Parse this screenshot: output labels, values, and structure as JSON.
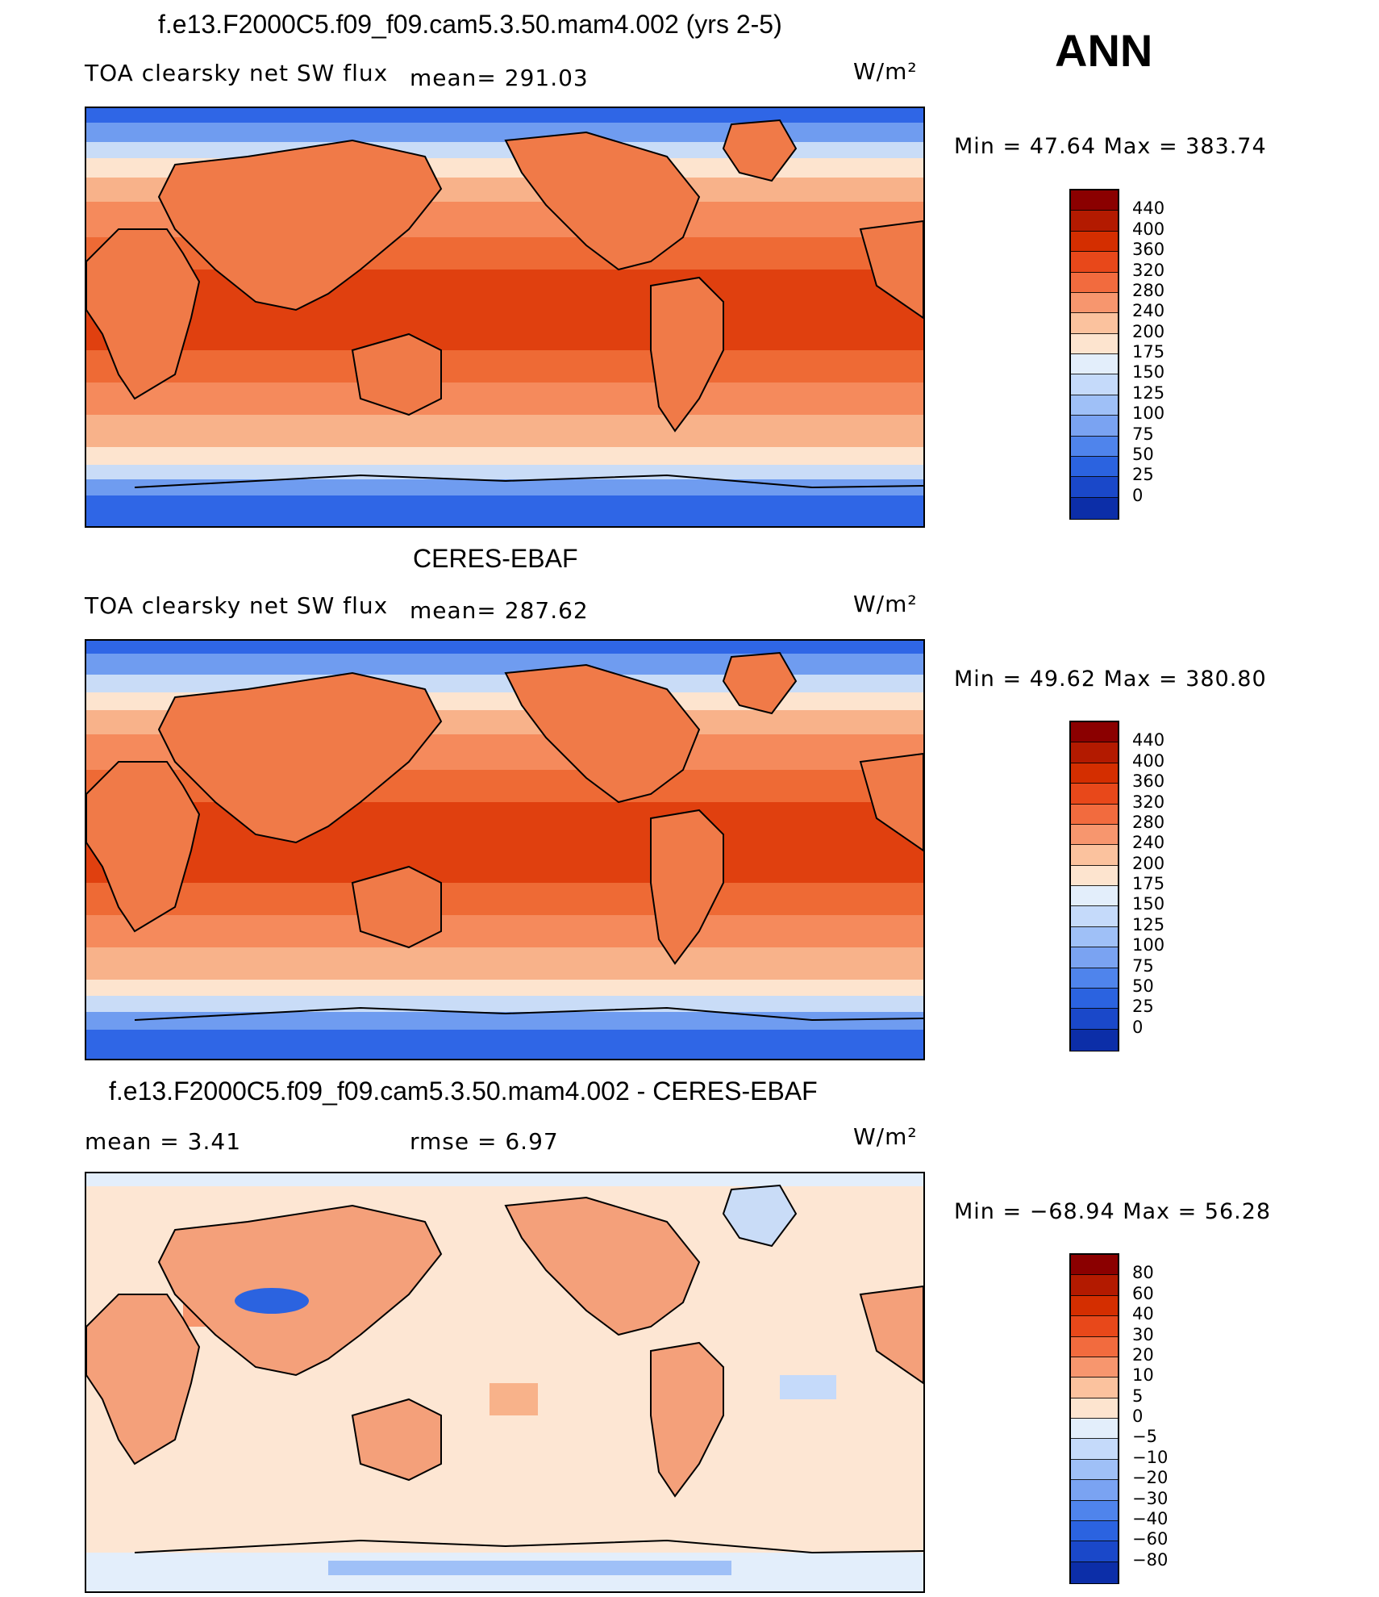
{
  "season": "ANN",
  "panels": [
    {
      "title": "f.e13.F2000C5.f09_f09.cam5.3.50.mam4.002 (yrs 2-5)",
      "left_label": "TOA clearsky net SW flux",
      "stat1": "mean= 291.03",
      "stat2": "",
      "units": "W/m²",
      "minmax": "Min =   47.64 Max = 383.74",
      "legend_labels": [
        "440",
        "400",
        "360",
        "320",
        "280",
        "240",
        "200",
        "175",
        "150",
        "125",
        "100",
        "75",
        "50",
        "25",
        "0"
      ],
      "legend_colors": [
        "#8b0000",
        "#b31a00",
        "#d42e00",
        "#e8481a",
        "#f26b3e",
        "#f7966e",
        "#fbc29e",
        "#fde4cf",
        "#e3eefb",
        "#c5dafa",
        "#9fc0f7",
        "#7aa3f2",
        "#4f84ec",
        "#2b63e0",
        "#1a48c9",
        "#0c2ea8"
      ]
    },
    {
      "title": "CERES-EBAF",
      "left_label": "TOA clearsky net SW flux",
      "stat1": "mean= 287.62",
      "stat2": "",
      "units": "W/m²",
      "minmax": "Min =   49.62 Max = 380.80",
      "legend_labels": [
        "440",
        "400",
        "360",
        "320",
        "280",
        "240",
        "200",
        "175",
        "150",
        "125",
        "100",
        "75",
        "50",
        "25",
        "0"
      ],
      "legend_colors": [
        "#8b0000",
        "#b31a00",
        "#d42e00",
        "#e8481a",
        "#f26b3e",
        "#f7966e",
        "#fbc29e",
        "#fde4cf",
        "#e3eefb",
        "#c5dafa",
        "#9fc0f7",
        "#7aa3f2",
        "#4f84ec",
        "#2b63e0",
        "#1a48c9",
        "#0c2ea8"
      ]
    },
    {
      "title": "f.e13.F2000C5.f09_f09.cam5.3.50.mam4.002 - CERES-EBAF",
      "left_label": "mean =    3.41",
      "stat1": "rmse =    6.97",
      "stat2": "",
      "units": "W/m²",
      "minmax": "Min = −68.94 Max =  56.28",
      "legend_labels": [
        "80",
        "60",
        "40",
        "30",
        "20",
        "10",
        "5",
        "0",
        "−5",
        "−10",
        "−20",
        "−30",
        "−40",
        "−60",
        "−80"
      ],
      "legend_colors": [
        "#8b0000",
        "#b31a00",
        "#d42e00",
        "#e8481a",
        "#f26b3e",
        "#f7966e",
        "#fbc29e",
        "#fde4cf",
        "#e3eefb",
        "#c5dafa",
        "#9fc0f7",
        "#7aa3f2",
        "#4f84ec",
        "#2b63e0",
        "#1a48c9",
        "#0c2ea8"
      ]
    }
  ],
  "map_colors": {
    "polar": "#2f66e6",
    "polar_edge": "#6f9cf0",
    "light_blue": "#c9dcf7",
    "cream": "#fde4cf",
    "peach": "#f8b28a",
    "salmon": "#f58a5c",
    "orange": "#ee6a35",
    "deep": "#e0400f",
    "land": "#f07a48",
    "diff_bg": "#fde6d3",
    "diff_land": "#f4a07a"
  }
}
